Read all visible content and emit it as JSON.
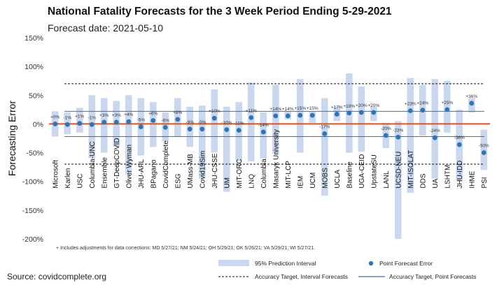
{
  "header": {
    "title": "National Fatality Forecasts for the 3 Week Period Ending 5-29-2021",
    "subtitle": "Forecast date: 2021-05-10"
  },
  "footnote": "+ Includes adjustments for data corrections: MD 5/27/21; NM 5/24/21; OH 5/29/21; OK 5/26/21; VA 5/29/21; WI 5/27/21.",
  "source": "Source: covidcomplete.org",
  "colors": {
    "interval": "#c9d8ef",
    "point": "#2e75b6",
    "accuracy_interval": "#111111",
    "accuracy_point": "#2e75b6",
    "zero_line": "#e0521a",
    "axis_text": "#333333"
  },
  "chart_data": {
    "type": "scatter",
    "ylabel": "Forecasting Error",
    "ylim": [
      -200,
      150
    ],
    "yticks": [
      150,
      100,
      50,
      0,
      -50,
      -100,
      -150,
      -200
    ],
    "ytick_labels": [
      "150%",
      "100%",
      "50%",
      "0%",
      "-50%",
      "-100%",
      "-150%",
      "-200%"
    ],
    "accuracy_target_interval": [
      70,
      -70
    ],
    "accuracy_target_point": [
      22,
      -22
    ],
    "categories": [
      "Microsoft",
      "Karlen",
      "USC",
      "Columbia-UNC",
      "Ensemble",
      "GT-DeepCOVID",
      "Oliver Wyman",
      "JHU-APL",
      "BPagano",
      "CovidComplete",
      "ESG",
      "UMass-MB",
      "Covid19Sim",
      "JHU-CSSE",
      "UM",
      "MIT-ORC",
      "LNQ",
      "Columbia",
      "Masaryk University",
      "MIT-LCP",
      "IEM",
      "UCM",
      "MOBS",
      "UCLA",
      "Baseline",
      "UGA-CEID",
      "UpstateSU",
      "LANL",
      "UCSD-NEU",
      "MIT-ISOLAT",
      "DDS",
      "UA",
      "LSHTM",
      "JHU-IDD",
      "IHME",
      "PSI"
    ],
    "point_labels": [
      "+0%",
      "-1%",
      "+1%",
      "-1%",
      "+3%",
      "+3%",
      "+4%",
      "-5%",
      "+6%",
      "-6%",
      "+8%",
      "-9%",
      "-9%",
      "+10%",
      "-10%",
      "-11%",
      "+11%",
      "-14%",
      "+14%",
      "+14%",
      "+15%",
      "+15%",
      "-17%",
      "+17%",
      "+19%",
      "+20%",
      "+20%",
      "-20%",
      "-23%",
      "+23%",
      "+24%",
      "-24%",
      "+25%",
      "-36%",
      "+36%",
      "-50%"
    ],
    "point_values": [
      0,
      -1,
      1,
      -1,
      3,
      3,
      4,
      -5,
      6,
      -6,
      8,
      -9,
      -9,
      10,
      -10,
      -11,
      11,
      -14,
      14,
      14,
      15,
      15,
      -17,
      17,
      19,
      20,
      20,
      -20,
      -23,
      23,
      24,
      -24,
      25,
      -36,
      36,
      -50
    ],
    "interval_low": [
      -22,
      -18,
      -15,
      -60,
      -50,
      -40,
      -88,
      -55,
      -40,
      -30,
      -22,
      -40,
      -95,
      -50,
      -118,
      -65,
      -65,
      -60,
      -52,
      8,
      -50,
      2,
      -125,
      5,
      -50,
      -48,
      5,
      -42,
      -200,
      -120,
      -20,
      -95,
      -15,
      -100,
      20,
      -80
    ],
    "interval_high": [
      22,
      20,
      28,
      50,
      45,
      40,
      50,
      45,
      38,
      20,
      45,
      30,
      32,
      60,
      30,
      38,
      72,
      20,
      68,
      22,
      78,
      22,
      45,
      30,
      88,
      65,
      30,
      2,
      5,
      80,
      68,
      78,
      75,
      25,
      45,
      -10
    ],
    "legend": {
      "interval": "95% Prediction Interval",
      "point": "Point Forecast Error",
      "accuracy_interval": "Accuracy Target, Interval Forecasts",
      "accuracy_point": "Accuracy Target, Point Forecasts"
    },
    "grid": false,
    "legend_position": "bottom"
  }
}
